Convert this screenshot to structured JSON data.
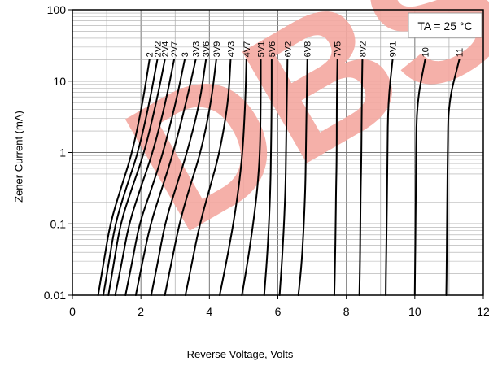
{
  "chart_data": {
    "type": "line",
    "title": "",
    "xlabel": "Reverse Voltage, Volts",
    "ylabel": "Zener Current (mA)",
    "annotation": "TA = 25 °C",
    "watermark_text": "DBS",
    "watermark_color": "#f4a7a0",
    "line_color": "#000000",
    "grid": true,
    "y_scale": "log",
    "xlim": [
      0,
      12
    ],
    "ylim": [
      0.01,
      100
    ],
    "x_ticks": [
      "0",
      "2",
      "4",
      "6",
      "8",
      "10",
      "12"
    ],
    "y_ticks": [
      "0.01",
      "0.1",
      "1",
      "10",
      "100"
    ],
    "series": [
      {
        "name": "2",
        "x": [
          0.75,
          0.92,
          1.1,
          1.4,
          1.75,
          2.05,
          2.25
        ],
        "y": [
          0.01,
          0.03,
          0.1,
          0.3,
          1,
          5,
          20
        ]
      },
      {
        "name": "2V2",
        "x": [
          0.9,
          1.07,
          1.25,
          1.55,
          1.92,
          2.25,
          2.48
        ],
        "y": [
          0.01,
          0.03,
          0.1,
          0.3,
          1,
          5,
          20
        ]
      },
      {
        "name": "2V4",
        "x": [
          1.05,
          1.22,
          1.4,
          1.72,
          2.1,
          2.45,
          2.7
        ],
        "y": [
          0.01,
          0.03,
          0.1,
          0.3,
          1,
          5,
          20
        ]
      },
      {
        "name": "2V7",
        "x": [
          1.25,
          1.45,
          1.65,
          1.97,
          2.35,
          2.72,
          2.97
        ],
        "y": [
          0.01,
          0.03,
          0.1,
          0.3,
          1,
          5,
          20
        ]
      },
      {
        "name": "3",
        "x": [
          1.55,
          1.75,
          1.95,
          2.3,
          2.65,
          3.02,
          3.28
        ],
        "y": [
          0.01,
          0.03,
          0.1,
          0.3,
          1,
          5,
          20
        ]
      },
      {
        "name": "3V3",
        "x": [
          1.85,
          2.05,
          2.28,
          2.6,
          2.95,
          3.32,
          3.6
        ],
        "y": [
          0.01,
          0.03,
          0.1,
          0.3,
          1,
          5,
          20
        ]
      },
      {
        "name": "3V6",
        "x": [
          2.3,
          2.5,
          2.7,
          3.0,
          3.35,
          3.72,
          3.9
        ],
        "y": [
          0.01,
          0.03,
          0.1,
          0.3,
          1,
          5,
          20
        ]
      },
      {
        "name": "3V9",
        "x": [
          2.7,
          2.9,
          3.12,
          3.4,
          3.75,
          4.05,
          4.2
        ],
        "y": [
          0.01,
          0.03,
          0.1,
          0.3,
          1,
          5,
          20
        ]
      },
      {
        "name": "4V3",
        "x": [
          3.3,
          3.5,
          3.72,
          4.0,
          4.3,
          4.55,
          4.62
        ],
        "y": [
          0.01,
          0.03,
          0.1,
          0.3,
          1,
          5,
          20
        ]
      },
      {
        "name": "4V7",
        "x": [
          4.3,
          4.5,
          4.7,
          4.85,
          4.97,
          5.05,
          5.08
        ],
        "y": [
          0.01,
          0.03,
          0.1,
          0.3,
          1,
          5,
          20
        ]
      },
      {
        "name": "5V1",
        "x": [
          4.95,
          5.12,
          5.28,
          5.4,
          5.48,
          5.5,
          5.5
        ],
        "y": [
          0.01,
          0.03,
          0.1,
          0.3,
          1,
          5,
          20
        ]
      },
      {
        "name": "5V6",
        "x": [
          5.6,
          5.68,
          5.74,
          5.78,
          5.8,
          5.82,
          5.82
        ],
        "y": [
          0.01,
          0.03,
          0.1,
          0.3,
          1,
          5,
          20
        ]
      },
      {
        "name": "6V2",
        "x": [
          6.05,
          6.12,
          6.18,
          6.22,
          6.24,
          6.26,
          6.28
        ],
        "y": [
          0.01,
          0.03,
          0.1,
          0.3,
          1,
          5,
          20
        ]
      },
      {
        "name": "6V8",
        "x": [
          6.6,
          6.7,
          6.76,
          6.8,
          6.82,
          6.84,
          6.86
        ],
        "y": [
          0.01,
          0.03,
          0.1,
          0.3,
          1,
          5,
          20
        ]
      },
      {
        "name": "7V5",
        "x": [
          7.65,
          7.67,
          7.69,
          7.7,
          7.72,
          7.72,
          7.74
        ],
        "y": [
          0.01,
          0.03,
          0.1,
          0.3,
          1,
          5,
          20
        ]
      },
      {
        "name": "8V2",
        "x": [
          8.38,
          8.4,
          8.41,
          8.42,
          8.44,
          8.45,
          8.47
        ],
        "y": [
          0.01,
          0.03,
          0.1,
          0.3,
          1,
          5,
          20
        ]
      },
      {
        "name": "9V1",
        "x": [
          9.15,
          9.16,
          9.18,
          9.19,
          9.2,
          9.22,
          9.35
        ],
        "y": [
          0.01,
          0.03,
          0.1,
          0.3,
          1,
          5,
          20
        ]
      },
      {
        "name": "10",
        "x": [
          10.0,
          10.01,
          10.02,
          10.03,
          10.04,
          10.06,
          10.3
        ],
        "y": [
          0.01,
          0.03,
          0.1,
          0.3,
          1,
          5,
          20
        ]
      },
      {
        "name": "11",
        "x": [
          10.92,
          10.93,
          10.94,
          10.95,
          10.96,
          10.98,
          11.3
        ],
        "y": [
          0.01,
          0.03,
          0.1,
          0.3,
          1,
          5,
          20
        ]
      }
    ]
  }
}
